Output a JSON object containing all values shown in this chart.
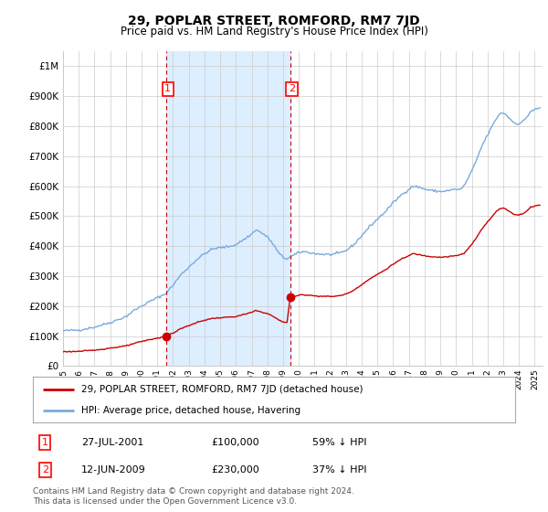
{
  "title": "29, POPLAR STREET, ROMFORD, RM7 7JD",
  "subtitle": "Price paid vs. HM Land Registry's House Price Index (HPI)",
  "ylim": [
    0,
    1050000
  ],
  "yticks": [
    0,
    100000,
    200000,
    300000,
    400000,
    500000,
    600000,
    700000,
    800000,
    900000,
    1000000
  ],
  "ytick_labels": [
    "£0",
    "£100K",
    "£200K",
    "£300K",
    "£400K",
    "£500K",
    "£600K",
    "£700K",
    "£800K",
    "£900K",
    "£1M"
  ],
  "xlim_start": 1995.0,
  "xlim_end": 2025.5,
  "sale1_x": 2001.57,
  "sale1_y": 100000,
  "sale2_x": 2009.45,
  "sale2_y": 230000,
  "hpi_color": "#7aaadd",
  "price_color": "#cc0000",
  "shade_color": "#ddeeff",
  "grid_color": "#cccccc",
  "background_color": "#ffffff",
  "legend_line1": "29, POPLAR STREET, ROMFORD, RM7 7JD (detached house)",
  "legend_line2": "HPI: Average price, detached house, Havering",
  "table_row1": [
    "1",
    "27-JUL-2001",
    "£100,000",
    "59% ↓ HPI"
  ],
  "table_row2": [
    "2",
    "12-JUN-2009",
    "£230,000",
    "37% ↓ HPI"
  ],
  "footer": "Contains HM Land Registry data © Crown copyright and database right 2024.\nThis data is licensed under the Open Government Licence v3.0."
}
